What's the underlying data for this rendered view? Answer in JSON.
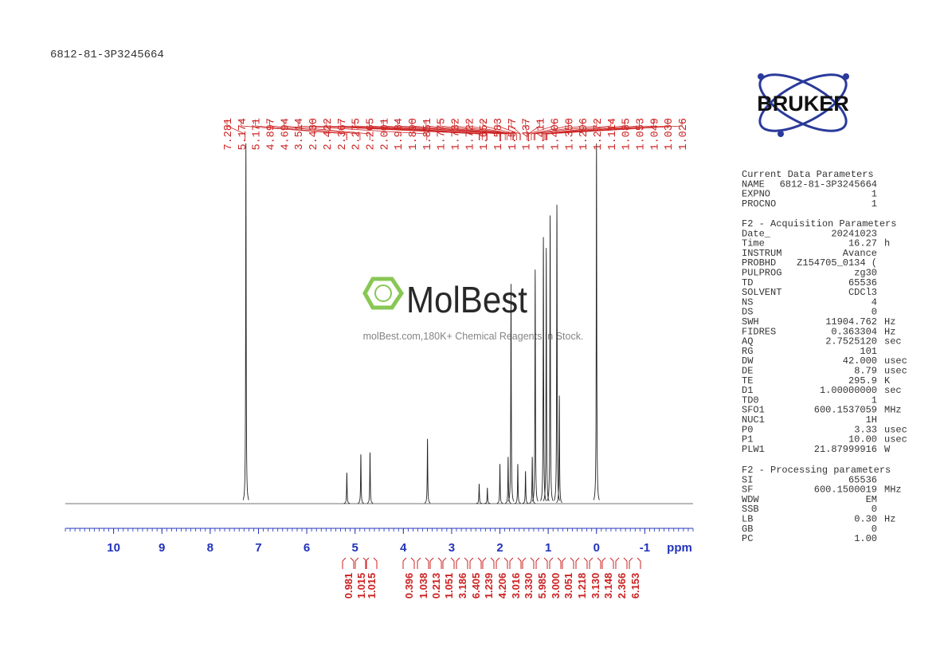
{
  "header": {
    "title": "6812-81-3P3245664"
  },
  "spectrum": {
    "xlim": [
      11,
      -2
    ],
    "xticks": [
      10,
      9,
      8,
      7,
      6,
      5,
      4,
      3,
      2,
      1,
      0,
      -1
    ],
    "x_unit": "ppm",
    "peaks": [
      {
        "ppm": 7.26,
        "height": 100
      },
      {
        "ppm": 0.0,
        "height": 100
      },
      {
        "ppm": 5.17,
        "height": 8.6
      },
      {
        "ppm": 4.88,
        "height": 13.7
      },
      {
        "ppm": 4.69,
        "height": 14.2
      },
      {
        "ppm": 3.5,
        "height": 18
      },
      {
        "ppm": 2.43,
        "height": 5.5
      },
      {
        "ppm": 2.26,
        "height": 4.4
      },
      {
        "ppm": 2.0,
        "height": 11
      },
      {
        "ppm": 1.83,
        "height": 13
      },
      {
        "ppm": 1.77,
        "height": 61
      },
      {
        "ppm": 1.63,
        "height": 11
      },
      {
        "ppm": 1.47,
        "height": 9
      },
      {
        "ppm": 1.33,
        "height": 13
      },
      {
        "ppm": 1.27,
        "height": 65
      },
      {
        "ppm": 1.1,
        "height": 74
      },
      {
        "ppm": 1.04,
        "height": 71
      },
      {
        "ppm": 0.96,
        "height": 80
      },
      {
        "ppm": 0.82,
        "height": 83
      },
      {
        "ppm": 0.77,
        "height": 30
      }
    ]
  },
  "peak_labels": [
    "7.281",
    "5.174",
    "5.171",
    "4.897",
    "4.694",
    "3.514",
    "2.430",
    "2.422",
    "2.367",
    "2.275",
    "2.265",
    "2.001",
    "1.984",
    "1.890",
    "1.851",
    "1.775",
    "1.732",
    "1.722",
    "1.652",
    "1.583",
    "1.577",
    "1.437",
    "1.411",
    "1.406",
    "1.350",
    "1.296",
    "1.272",
    "1.114",
    "1.085",
    "1.053",
    "1.049",
    "1.030",
    "1.026"
  ],
  "integrals": [
    "0.981",
    "1.015",
    "1.015",
    "0.396",
    "1.038",
    "0.213",
    "1.051",
    "3.186",
    "6.405",
    "1.239",
    "4.206",
    "3.016",
    "3.330",
    "5.985",
    "3.000",
    "3.051",
    "1.218",
    "3.130",
    "3.148",
    "2.366",
    "6.153"
  ],
  "watermark": {
    "brand": "MolBest",
    "tagline": "molBest.com,180K+ Chemical Reagents In Stock."
  },
  "logo": {
    "text": "BRUKER"
  },
  "parameters": [
    {
      "title": "Current Data Parameters",
      "rows": [
        [
          "NAME",
          "6812-81-3P3245664"
        ],
        [
          "EXPNO",
          "1"
        ],
        [
          "PROCNO",
          "1"
        ]
      ]
    },
    {
      "title": "F2 - Acquisition Parameters",
      "rows": [
        [
          "Date_",
          "20241023"
        ],
        [
          "Time",
          "16.27",
          "h"
        ],
        [
          "INSTRUM",
          "Avance"
        ],
        [
          "PROBHD",
          "Z154705_0134 ("
        ],
        [
          "PULPROG",
          "zg30"
        ],
        [
          "TD",
          "65536"
        ],
        [
          "SOLVENT",
          "CDCl3"
        ],
        [
          "NS",
          "4"
        ],
        [
          "DS",
          "0"
        ],
        [
          "SWH",
          "11904.762",
          "Hz"
        ],
        [
          "FIDRES",
          "0.363304",
          "Hz"
        ],
        [
          "AQ",
          "2.7525120",
          "sec"
        ],
        [
          "RG",
          "101"
        ],
        [
          "DW",
          "42.000",
          "usec"
        ],
        [
          "DE",
          "8.79",
          "usec"
        ],
        [
          "TE",
          "295.9",
          "K"
        ],
        [
          "D1",
          "1.00000000",
          "sec"
        ],
        [
          "TD0",
          "1"
        ],
        [
          "SFO1",
          "600.1537059",
          "MHz"
        ],
        [
          "NUC1",
          "1H"
        ],
        [
          "P0",
          "3.33",
          "usec"
        ],
        [
          "P1",
          "10.00",
          "usec"
        ],
        [
          "PLW1",
          "21.87999916",
          "W"
        ]
      ]
    },
    {
      "title": "F2 - Processing parameters",
      "rows": [
        [
          "SI",
          "65536"
        ],
        [
          "SF",
          "600.1500019",
          "MHz"
        ],
        [
          "WDW",
          "EM"
        ],
        [
          "SSB",
          "0"
        ],
        [
          "LB",
          "0.30",
          "Hz"
        ],
        [
          "GB",
          "0"
        ],
        [
          "PC",
          "1.00"
        ]
      ]
    }
  ]
}
